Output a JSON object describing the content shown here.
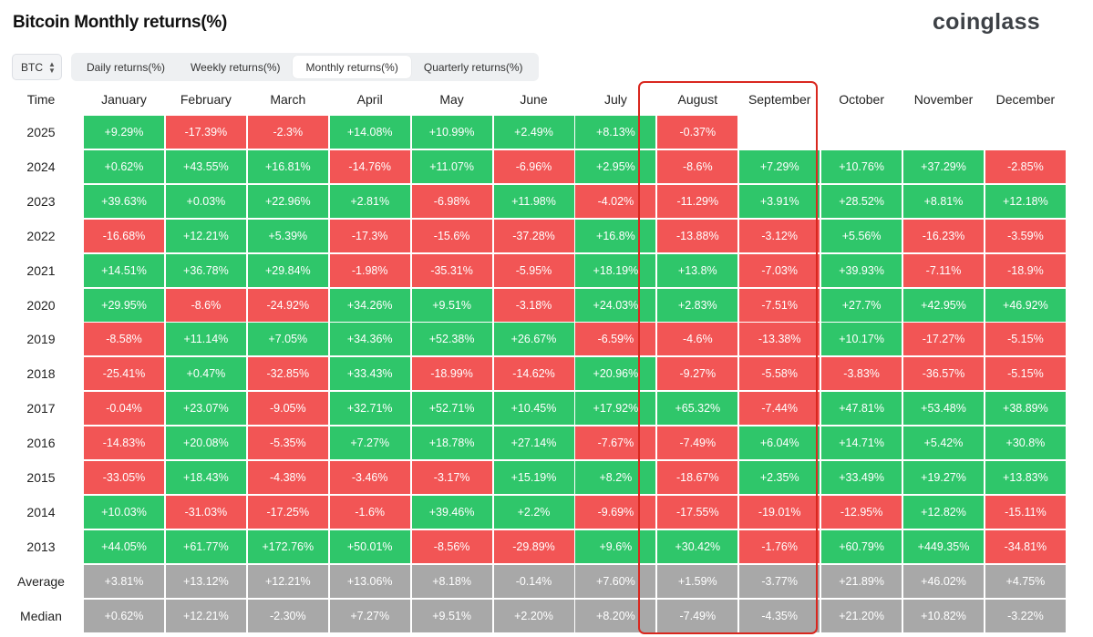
{
  "header": {
    "title": "Bitcoin Monthly returns(%)",
    "brand": "coinglass"
  },
  "controls": {
    "coin_select": "BTC",
    "tabs": [
      {
        "label": "Daily returns(%)",
        "active": false
      },
      {
        "label": "Weekly returns(%)",
        "active": false
      },
      {
        "label": "Monthly returns(%)",
        "active": true
      },
      {
        "label": "Quarterly returns(%)",
        "active": false
      }
    ]
  },
  "colors": {
    "positive": "#2fc66a",
    "negative": "#f25555",
    "summary": "#a8a8a8",
    "highlight": "#d9271f"
  },
  "highlight_columns": [
    "August",
    "September"
  ],
  "chart_data": {
    "type": "table",
    "title": "Bitcoin Monthly returns(%)",
    "row_header": "Time",
    "columns": [
      "January",
      "February",
      "March",
      "April",
      "May",
      "June",
      "July",
      "August",
      "September",
      "October",
      "November",
      "December"
    ],
    "rows": [
      {
        "label": "2025",
        "kind": "year",
        "values": [
          "+9.29%",
          "-17.39%",
          "-2.3%",
          "+14.08%",
          "+10.99%",
          "+2.49%",
          "+8.13%",
          "-0.37%",
          null,
          null,
          null,
          null
        ]
      },
      {
        "label": "2024",
        "kind": "year",
        "values": [
          "+0.62%",
          "+43.55%",
          "+16.81%",
          "-14.76%",
          "+11.07%",
          "-6.96%",
          "+2.95%",
          "-8.6%",
          "+7.29%",
          "+10.76%",
          "+37.29%",
          "-2.85%"
        ]
      },
      {
        "label": "2023",
        "kind": "year",
        "values": [
          "+39.63%",
          "+0.03%",
          "+22.96%",
          "+2.81%",
          "-6.98%",
          "+11.98%",
          "-4.02%",
          "-11.29%",
          "+3.91%",
          "+28.52%",
          "+8.81%",
          "+12.18%"
        ]
      },
      {
        "label": "2022",
        "kind": "year",
        "values": [
          "-16.68%",
          "+12.21%",
          "+5.39%",
          "-17.3%",
          "-15.6%",
          "-37.28%",
          "+16.8%",
          "-13.88%",
          "-3.12%",
          "+5.56%",
          "-16.23%",
          "-3.59%"
        ]
      },
      {
        "label": "2021",
        "kind": "year",
        "values": [
          "+14.51%",
          "+36.78%",
          "+29.84%",
          "-1.98%",
          "-35.31%",
          "-5.95%",
          "+18.19%",
          "+13.8%",
          "-7.03%",
          "+39.93%",
          "-7.11%",
          "-18.9%"
        ]
      },
      {
        "label": "2020",
        "kind": "year",
        "values": [
          "+29.95%",
          "-8.6%",
          "-24.92%",
          "+34.26%",
          "+9.51%",
          "-3.18%",
          "+24.03%",
          "+2.83%",
          "-7.51%",
          "+27.7%",
          "+42.95%",
          "+46.92%"
        ]
      },
      {
        "label": "2019",
        "kind": "year",
        "values": [
          "-8.58%",
          "+11.14%",
          "+7.05%",
          "+34.36%",
          "+52.38%",
          "+26.67%",
          "-6.59%",
          "-4.6%",
          "-13.38%",
          "+10.17%",
          "-17.27%",
          "-5.15%"
        ]
      },
      {
        "label": "2018",
        "kind": "year",
        "values": [
          "-25.41%",
          "+0.47%",
          "-32.85%",
          "+33.43%",
          "-18.99%",
          "-14.62%",
          "+20.96%",
          "-9.27%",
          "-5.58%",
          "-3.83%",
          "-36.57%",
          "-5.15%"
        ]
      },
      {
        "label": "2017",
        "kind": "year",
        "values": [
          "-0.04%",
          "+23.07%",
          "-9.05%",
          "+32.71%",
          "+52.71%",
          "+10.45%",
          "+17.92%",
          "+65.32%",
          "-7.44%",
          "+47.81%",
          "+53.48%",
          "+38.89%"
        ]
      },
      {
        "label": "2016",
        "kind": "year",
        "values": [
          "-14.83%",
          "+20.08%",
          "-5.35%",
          "+7.27%",
          "+18.78%",
          "+27.14%",
          "-7.67%",
          "-7.49%",
          "+6.04%",
          "+14.71%",
          "+5.42%",
          "+30.8%"
        ]
      },
      {
        "label": "2015",
        "kind": "year",
        "values": [
          "-33.05%",
          "+18.43%",
          "-4.38%",
          "-3.46%",
          "-3.17%",
          "+15.19%",
          "+8.2%",
          "-18.67%",
          "+2.35%",
          "+33.49%",
          "+19.27%",
          "+13.83%"
        ]
      },
      {
        "label": "2014",
        "kind": "year",
        "values": [
          "+10.03%",
          "-31.03%",
          "-17.25%",
          "-1.6%",
          "+39.46%",
          "+2.2%",
          "-9.69%",
          "-17.55%",
          "-19.01%",
          "-12.95%",
          "+12.82%",
          "-15.11%"
        ]
      },
      {
        "label": "2013",
        "kind": "year",
        "values": [
          "+44.05%",
          "+61.77%",
          "+172.76%",
          "+50.01%",
          "-8.56%",
          "-29.89%",
          "+9.6%",
          "+30.42%",
          "-1.76%",
          "+60.79%",
          "+449.35%",
          "-34.81%"
        ]
      },
      {
        "label": "Average",
        "kind": "stat",
        "values": [
          "+3.81%",
          "+13.12%",
          "+12.21%",
          "+13.06%",
          "+8.18%",
          "-0.14%",
          "+7.60%",
          "+1.59%",
          "-3.77%",
          "+21.89%",
          "+46.02%",
          "+4.75%"
        ]
      },
      {
        "label": "Median",
        "kind": "stat",
        "values": [
          "+0.62%",
          "+12.21%",
          "-2.30%",
          "+7.27%",
          "+9.51%",
          "+2.20%",
          "+8.20%",
          "-7.49%",
          "-4.35%",
          "+21.20%",
          "+10.82%",
          "-3.22%"
        ]
      }
    ]
  }
}
